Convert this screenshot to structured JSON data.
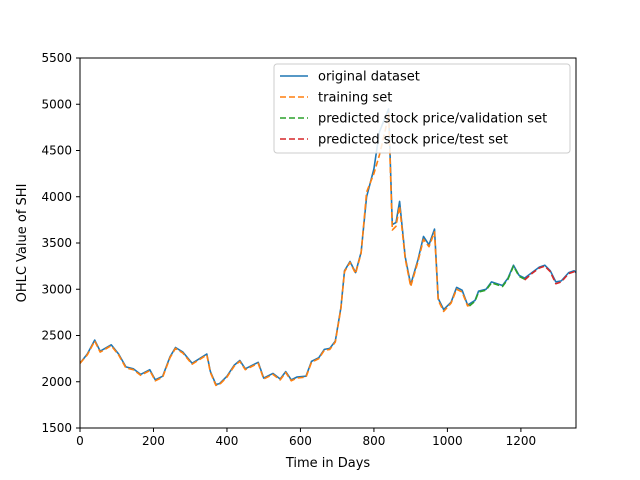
{
  "chart_data": {
    "type": "line",
    "title": "",
    "xlabel": "Time in Days",
    "ylabel": "OHLC Value of SHI",
    "xlim": [
      0,
      1350
    ],
    "ylim": [
      1500,
      5500
    ],
    "xticks": [
      0,
      200,
      400,
      600,
      800,
      1000,
      1200
    ],
    "yticks": [
      1500,
      2000,
      2500,
      3000,
      3500,
      4000,
      4500,
      5000,
      5500
    ],
    "grid": false,
    "legend_position": "top-right",
    "series": [
      {
        "name": "original dataset",
        "color": "#1f77b4",
        "dash": "solid",
        "points": [
          [
            0,
            2200
          ],
          [
            20,
            2300
          ],
          [
            40,
            2450
          ],
          [
            55,
            2330
          ],
          [
            85,
            2400
          ],
          [
            105,
            2300
          ],
          [
            125,
            2160
          ],
          [
            145,
            2140
          ],
          [
            165,
            2080
          ],
          [
            190,
            2130
          ],
          [
            205,
            2020
          ],
          [
            225,
            2060
          ],
          [
            245,
            2270
          ],
          [
            260,
            2370
          ],
          [
            280,
            2320
          ],
          [
            305,
            2200
          ],
          [
            345,
            2300
          ],
          [
            355,
            2110
          ],
          [
            370,
            1970
          ],
          [
            380,
            1980
          ],
          [
            400,
            2060
          ],
          [
            420,
            2180
          ],
          [
            435,
            2230
          ],
          [
            450,
            2140
          ],
          [
            485,
            2210
          ],
          [
            500,
            2040
          ],
          [
            525,
            2090
          ],
          [
            545,
            2030
          ],
          [
            560,
            2110
          ],
          [
            575,
            2020
          ],
          [
            590,
            2050
          ],
          [
            615,
            2060
          ],
          [
            630,
            2220
          ],
          [
            650,
            2260
          ],
          [
            665,
            2350
          ],
          [
            680,
            2360
          ],
          [
            695,
            2440
          ],
          [
            710,
            2800
          ],
          [
            720,
            3200
          ],
          [
            735,
            3300
          ],
          [
            750,
            3180
          ],
          [
            765,
            3400
          ],
          [
            780,
            4000
          ],
          [
            800,
            4300
          ],
          [
            815,
            4700
          ],
          [
            830,
            4850
          ],
          [
            840,
            4950
          ],
          [
            850,
            3700
          ],
          [
            860,
            3720
          ],
          [
            870,
            3950
          ],
          [
            885,
            3350
          ],
          [
            900,
            3050
          ],
          [
            920,
            3320
          ],
          [
            935,
            3570
          ],
          [
            950,
            3480
          ],
          [
            965,
            3650
          ],
          [
            975,
            2900
          ],
          [
            990,
            2780
          ],
          [
            1010,
            2860
          ],
          [
            1025,
            3020
          ],
          [
            1040,
            2990
          ],
          [
            1055,
            2830
          ],
          [
            1075,
            2880
          ],
          [
            1085,
            2980
          ],
          [
            1105,
            3000
          ],
          [
            1120,
            3080
          ],
          [
            1150,
            3040
          ],
          [
            1165,
            3120
          ],
          [
            1180,
            3260
          ],
          [
            1195,
            3150
          ],
          [
            1210,
            3120
          ],
          [
            1230,
            3180
          ],
          [
            1250,
            3240
          ],
          [
            1265,
            3260
          ],
          [
            1280,
            3200
          ],
          [
            1295,
            3080
          ],
          [
            1310,
            3090
          ],
          [
            1330,
            3180
          ],
          [
            1345,
            3200
          ],
          [
            1350,
            3180
          ]
        ]
      },
      {
        "name": "training set",
        "color": "#ff7f0e",
        "dash": "dashed",
        "points": [
          [
            0,
            2200
          ],
          [
            20,
            2290
          ],
          [
            40,
            2440
          ],
          [
            55,
            2320
          ],
          [
            85,
            2390
          ],
          [
            105,
            2290
          ],
          [
            125,
            2150
          ],
          [
            145,
            2130
          ],
          [
            165,
            2070
          ],
          [
            190,
            2120
          ],
          [
            205,
            2010
          ],
          [
            225,
            2050
          ],
          [
            245,
            2260
          ],
          [
            260,
            2360
          ],
          [
            280,
            2310
          ],
          [
            305,
            2190
          ],
          [
            345,
            2290
          ],
          [
            355,
            2100
          ],
          [
            370,
            1960
          ],
          [
            380,
            1970
          ],
          [
            400,
            2050
          ],
          [
            420,
            2170
          ],
          [
            435,
            2220
          ],
          [
            450,
            2130
          ],
          [
            485,
            2200
          ],
          [
            500,
            2030
          ],
          [
            525,
            2080
          ],
          [
            545,
            2020
          ],
          [
            560,
            2100
          ],
          [
            575,
            2010
          ],
          [
            590,
            2040
          ],
          [
            615,
            2050
          ],
          [
            630,
            2210
          ],
          [
            650,
            2250
          ],
          [
            665,
            2340
          ],
          [
            680,
            2350
          ],
          [
            695,
            2430
          ],
          [
            710,
            2790
          ],
          [
            720,
            3190
          ],
          [
            735,
            3290
          ],
          [
            750,
            3170
          ],
          [
            765,
            3390
          ],
          [
            780,
            4050
          ],
          [
            800,
            4250
          ],
          [
            815,
            4450
          ],
          [
            830,
            4700
          ],
          [
            840,
            4900
          ],
          [
            850,
            3640
          ],
          [
            860,
            3680
          ],
          [
            870,
            3900
          ],
          [
            885,
            3330
          ],
          [
            900,
            3030
          ],
          [
            920,
            3300
          ],
          [
            935,
            3540
          ],
          [
            950,
            3460
          ],
          [
            965,
            3620
          ],
          [
            975,
            2880
          ],
          [
            990,
            2760
          ],
          [
            1010,
            2850
          ],
          [
            1025,
            3000
          ],
          [
            1040,
            2970
          ],
          [
            1055,
            2820
          ],
          [
            1065,
            2830
          ]
        ]
      },
      {
        "name": "predicted stock price/validation set",
        "color": "#2ca02c",
        "dash": "dashed",
        "points": [
          [
            1060,
            2820
          ],
          [
            1075,
            2870
          ],
          [
            1085,
            2970
          ],
          [
            1105,
            2990
          ],
          [
            1120,
            3070
          ],
          [
            1150,
            3030
          ],
          [
            1165,
            3110
          ],
          [
            1180,
            3250
          ],
          [
            1195,
            3140
          ],
          [
            1210,
            3110
          ]
        ]
      },
      {
        "name": "predicted stock price/test set",
        "color": "#d62728",
        "dash": "dashed",
        "points": [
          [
            1210,
            3100
          ],
          [
            1230,
            3170
          ],
          [
            1250,
            3230
          ],
          [
            1265,
            3250
          ],
          [
            1280,
            3190
          ],
          [
            1295,
            3060
          ],
          [
            1310,
            3080
          ],
          [
            1330,
            3170
          ],
          [
            1345,
            3190
          ],
          [
            1350,
            3170
          ]
        ]
      }
    ]
  }
}
